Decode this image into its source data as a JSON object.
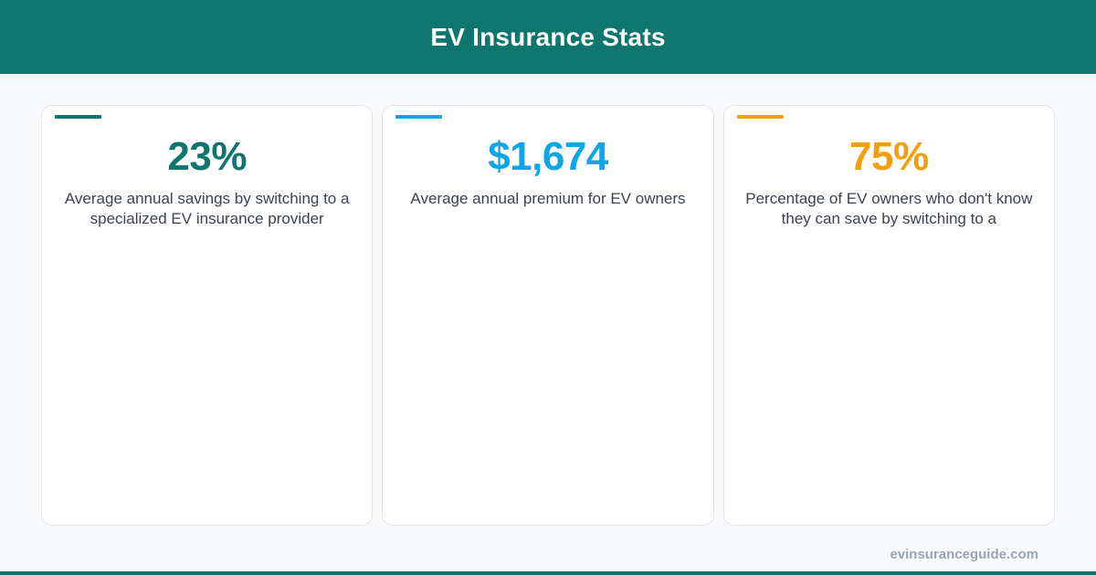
{
  "header": {
    "title": "EV Insurance Stats"
  },
  "colors": {
    "brand": "#0f766e",
    "teal": "#0f766e",
    "blue": "#0ea5e9",
    "amber": "#f59e0b"
  },
  "stats": [
    {
      "value": "23%",
      "description": "Average annual savings by switching to a specialized EV insurance provider",
      "color": "#0f766e"
    },
    {
      "value": "$1,674",
      "description": "Average annual premium for EV owners",
      "color": "#0ea5e9"
    },
    {
      "value": "75%",
      "description": "Percentage of EV owners who don't know they can save by switching to a",
      "color": "#f59e0b"
    }
  ],
  "footer": {
    "site": "evinsuranceguide.com"
  }
}
